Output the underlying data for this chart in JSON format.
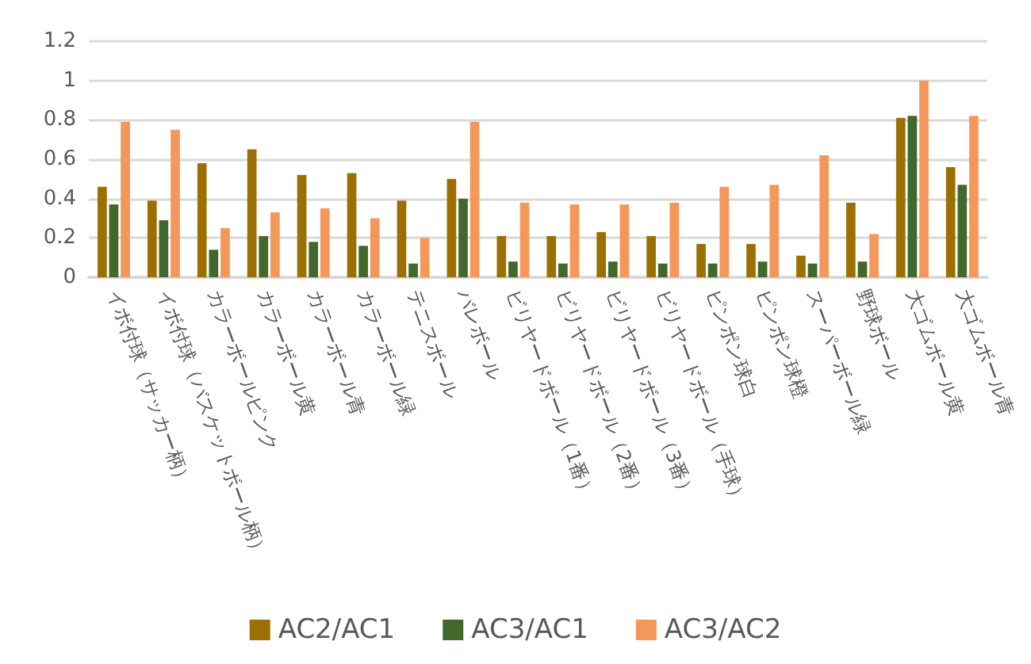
{
  "chart_data": {
    "type": "bar",
    "categories": [
      "イボ付球（サッカー柄）",
      "イボ付球（バスケットボール柄）",
      "カラーボールピンク",
      "カラーボール黄",
      "カラーボール青",
      "カラーボール緑",
      "テニスボール",
      "バレボール",
      "ビリヤードボール（1番）",
      "ビリヤードボール（2番）",
      "ビリヤードボール（3番）",
      "ビリヤードボール（手球）",
      "ピンポン球白",
      "ピンポン球橙",
      "スーパーボール緑",
      "野球ボール",
      "大ゴムボール黄",
      "大ゴムボール青"
    ],
    "series": [
      {
        "name": "AC2/AC1",
        "color": "#9c7000",
        "values": [
          0.46,
          0.39,
          0.58,
          0.65,
          0.52,
          0.53,
          0.39,
          0.5,
          0.21,
          0.21,
          0.23,
          0.21,
          0.17,
          0.17,
          0.11,
          0.38,
          0.81,
          0.56
        ]
      },
      {
        "name": "AC3/AC1",
        "color": "#43682b",
        "values": [
          0.37,
          0.29,
          0.14,
          0.21,
          0.18,
          0.16,
          0.07,
          0.4,
          0.08,
          0.07,
          0.08,
          0.07,
          0.07,
          0.08,
          0.07,
          0.08,
          0.82,
          0.47
        ]
      },
      {
        "name": "AC3/AC2",
        "color": "#f4975a",
        "values": [
          0.79,
          0.75,
          0.25,
          0.33,
          0.35,
          0.3,
          0.2,
          0.79,
          0.38,
          0.37,
          0.37,
          0.38,
          0.46,
          0.47,
          0.62,
          0.22,
          1.0,
          0.82
        ]
      }
    ],
    "ylim": [
      0,
      1.2
    ],
    "yticks": [
      0,
      0.2,
      0.4,
      0.6,
      0.8,
      1,
      1.2
    ],
    "grid": "y",
    "legend": "bottom"
  }
}
